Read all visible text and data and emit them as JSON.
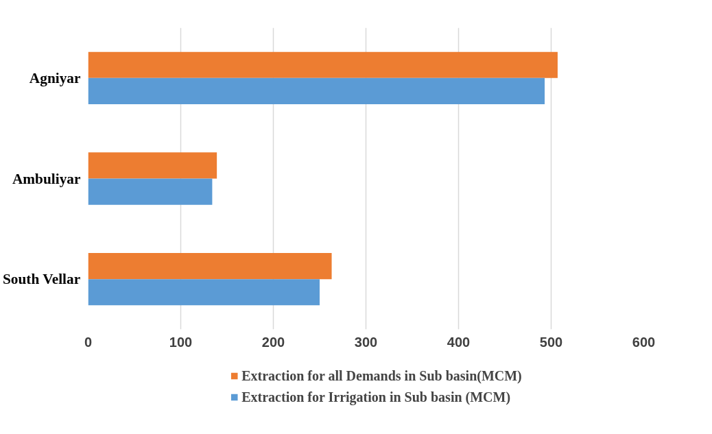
{
  "chart_data": {
    "type": "bar",
    "orientation": "horizontal",
    "categories": [
      "Agniyar",
      "Ambuliyar",
      "South Vellar"
    ],
    "series": [
      {
        "name": "Extraction for all Demands in Sub basin(MCM)",
        "color": "#ed7d31",
        "values": [
          507,
          139,
          263
        ]
      },
      {
        "name": "Extraction for Irrigation in Sub basin (MCM)",
        "color": "#5b9bd5",
        "values": [
          493,
          134,
          250
        ]
      }
    ],
    "xlim": [
      0,
      600
    ],
    "xticks": [
      0,
      100,
      200,
      300,
      400,
      500,
      600
    ],
    "grid": "x",
    "legend": "bottom"
  }
}
